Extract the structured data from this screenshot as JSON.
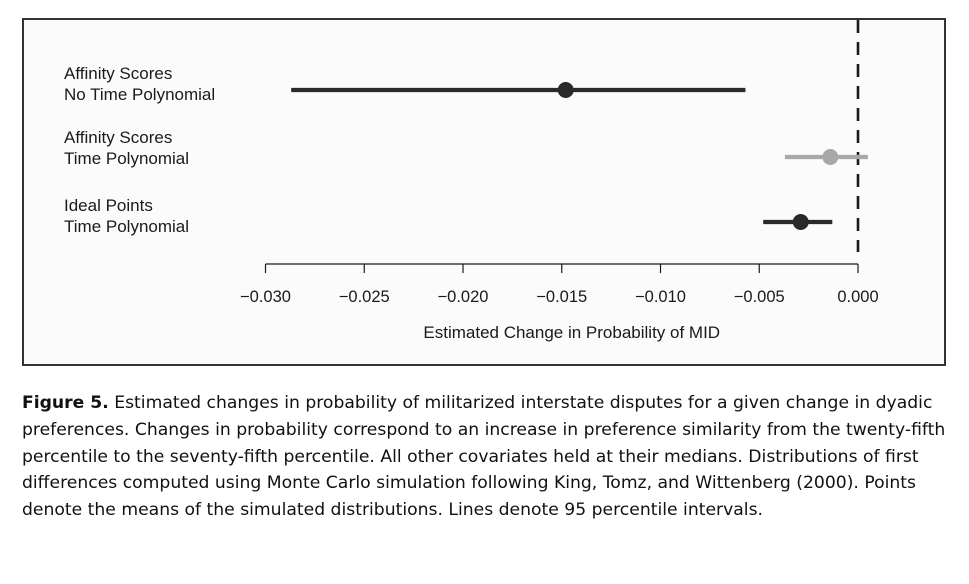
{
  "chart_data": {
    "type": "scatter",
    "categories": [
      "Affinity Scores\nNo Time Polynomial",
      "Affinity Scores\nTime Polynomial",
      "Ideal Points\nTime Polynomial"
    ],
    "series": [
      {
        "points": [
          {
            "category": "Affinity Scores\nNo Time Polynomial",
            "mean": -0.0148,
            "lower": -0.0287,
            "upper": -0.0057,
            "color": "#2a2a2a"
          },
          {
            "category": "Affinity Scores\nTime Polynomial",
            "mean": -0.0014,
            "lower": -0.0037,
            "upper": 0.0005,
            "color": "#a8a8a8"
          },
          {
            "category": "Ideal Points\nTime Polynomial",
            "mean": -0.0029,
            "lower": -0.0048,
            "upper": -0.0013,
            "color": "#2a2a2a"
          }
        ]
      }
    ],
    "xlabel": "Estimated Change in Probability of MID",
    "ylabel": "",
    "xlim": [
      -0.0305,
      0.0008
    ],
    "xticks": [
      -0.03,
      -0.025,
      -0.02,
      -0.015,
      -0.01,
      -0.005,
      0.0
    ],
    "xtick_labels": [
      "−0.030",
      "−0.025",
      "−0.020",
      "−0.015",
      "−0.010",
      "−0.005",
      "0.000"
    ],
    "reference_line": 0.0,
    "grid": false
  },
  "caption": {
    "label": "Figure 5.",
    "text": " Estimated changes in probability of militarized interstate disputes for a given change in dyadic preferences. Changes in probability correspond to an increase in preference similarity from the twenty-fifth percentile to the seventy-fifth percentile. All other covariates held at their medians. Distributions of first differences computed using Monte Carlo simulation following King, Tomz, and Wittenberg (2000). Points denote the means of the simulated distributions. Lines denote 95 percentile intervals."
  }
}
